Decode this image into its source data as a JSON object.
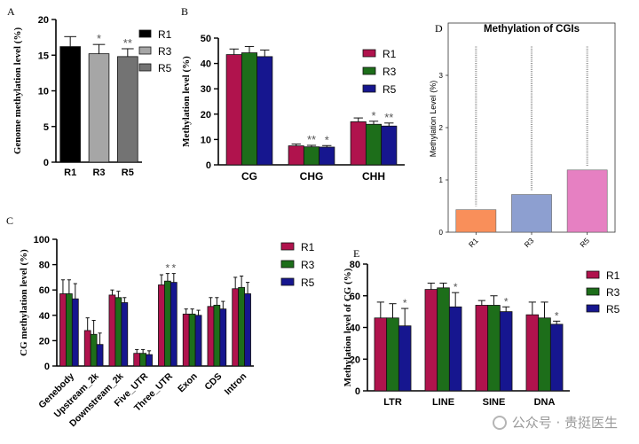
{
  "colors": {
    "R1": "#b0134d",
    "R3": "#1d6e1a",
    "R5": "#16168f",
    "A_R1": "#000000",
    "A_R3": "#a6a6a6",
    "A_R5": "#737373",
    "D_R1": "#f98f5a",
    "D_R3": "#8d9fd0",
    "D_R5": "#e680c2",
    "D_points": "#999999"
  },
  "chart_data": [
    {
      "panel": "A",
      "type": "bar",
      "ylabel": "Genome methylation level (%)",
      "ylim": [
        0,
        20
      ],
      "yticks": [
        "0",
        "5",
        "10",
        "15",
        "20"
      ],
      "categories": [
        "R1",
        "R3",
        "R5"
      ],
      "values": [
        16.2,
        15.2,
        14.8
      ],
      "errors": [
        1.4,
        1.3,
        1.1
      ],
      "stars": [
        "",
        "*",
        "**"
      ],
      "legend": [
        "R1",
        "R3",
        "R5"
      ]
    },
    {
      "panel": "B",
      "type": "bar",
      "ylabel": "Methylation level (%)",
      "ylim": [
        0,
        50
      ],
      "yticks": [
        "0",
        "10",
        "20",
        "30",
        "40",
        "50"
      ],
      "categories": [
        "CG",
        "CHG",
        "CHH"
      ],
      "series": [
        {
          "name": "R1",
          "values": [
            43.5,
            7.5,
            17.0
          ],
          "errors": [
            2.2,
            0.7,
            1.5
          ],
          "stars": [
            "",
            "",
            ""
          ]
        },
        {
          "name": "R3",
          "values": [
            44.2,
            7.1,
            16.0
          ],
          "errors": [
            2.5,
            0.6,
            1.2
          ],
          "stars": [
            "",
            "**",
            "*"
          ]
        },
        {
          "name": "R5",
          "values": [
            42.7,
            7.0,
            15.3
          ],
          "errors": [
            2.6,
            0.6,
            1.2
          ],
          "stars": [
            "",
            "*",
            "**"
          ]
        }
      ],
      "legend": [
        "R1",
        "R3",
        "R5"
      ]
    },
    {
      "panel": "C",
      "type": "bar",
      "ylabel": "CG methylation level (%)",
      "ylim": [
        0,
        100
      ],
      "yticks": [
        "0",
        "20",
        "40",
        "60",
        "80",
        "100"
      ],
      "categories": [
        "Genebody",
        "Upstream_2k",
        "Downstream_2k",
        "Five_UTR",
        "Three_UTR",
        "Exon",
        "CDS",
        "Intron"
      ],
      "series": [
        {
          "name": "R1",
          "values": [
            57,
            28,
            56,
            10,
            64,
            41,
            47,
            61
          ],
          "errors": [
            11,
            10,
            4,
            3,
            8,
            4,
            7,
            9
          ],
          "stars": [
            "",
            "",
            "",
            "",
            "",
            "",
            "",
            ""
          ]
        },
        {
          "name": "R3",
          "values": [
            57,
            25,
            54,
            10,
            67,
            41,
            48,
            62
          ],
          "errors": [
            11,
            11,
            5,
            3,
            6,
            4,
            6,
            9
          ],
          "stars": [
            "",
            "",
            "",
            "",
            "*",
            "",
            "",
            ""
          ]
        },
        {
          "name": "R5",
          "values": [
            53,
            17,
            50,
            9,
            66,
            40,
            45,
            57
          ],
          "errors": [
            12,
            9,
            4,
            3,
            7,
            4,
            6,
            9
          ],
          "stars": [
            "",
            "",
            "",
            "",
            "*",
            "",
            "",
            ""
          ]
        }
      ],
      "legend": [
        "R1",
        "R3",
        "R5"
      ]
    },
    {
      "panel": "D",
      "type": "bar",
      "title": "Methylation of CGIs",
      "ylabel": "Methylation Level (%)",
      "ylim": [
        0,
        4
      ],
      "yticks": [
        "0",
        "1",
        "2",
        "3"
      ],
      "categories": [
        "R1",
        "R3",
        "R5"
      ],
      "values": [
        0.43,
        0.72,
        1.19
      ],
      "outlier_min": [
        0.5,
        0.8,
        1.25
      ],
      "outlier_max": [
        3.55,
        3.55,
        3.55
      ]
    },
    {
      "panel": "E",
      "type": "bar",
      "ylabel": "Methylation level of CG (%)",
      "ylim": [
        0,
        80
      ],
      "yticks": [
        "0",
        "20",
        "40",
        "60",
        "80"
      ],
      "categories": [
        "LTR",
        "LINE",
        "SINE",
        "DNA"
      ],
      "series": [
        {
          "name": "R1",
          "values": [
            46,
            64,
            54,
            48
          ],
          "errors": [
            10,
            4,
            3,
            8
          ],
          "stars": [
            "",
            "",
            "",
            ""
          ]
        },
        {
          "name": "R3",
          "values": [
            46,
            65,
            54,
            46
          ],
          "errors": [
            9,
            3,
            6,
            10
          ],
          "stars": [
            "",
            "",
            "",
            ""
          ]
        },
        {
          "name": "R5",
          "values": [
            41,
            53,
            50,
            42
          ],
          "errors": [
            11,
            9,
            3,
            2
          ],
          "stars": [
            "*",
            "*",
            "*",
            "*"
          ]
        }
      ],
      "legend": [
        "R1",
        "R3",
        "R5"
      ]
    }
  ],
  "watermark": "公众号 · 贵挺医生"
}
